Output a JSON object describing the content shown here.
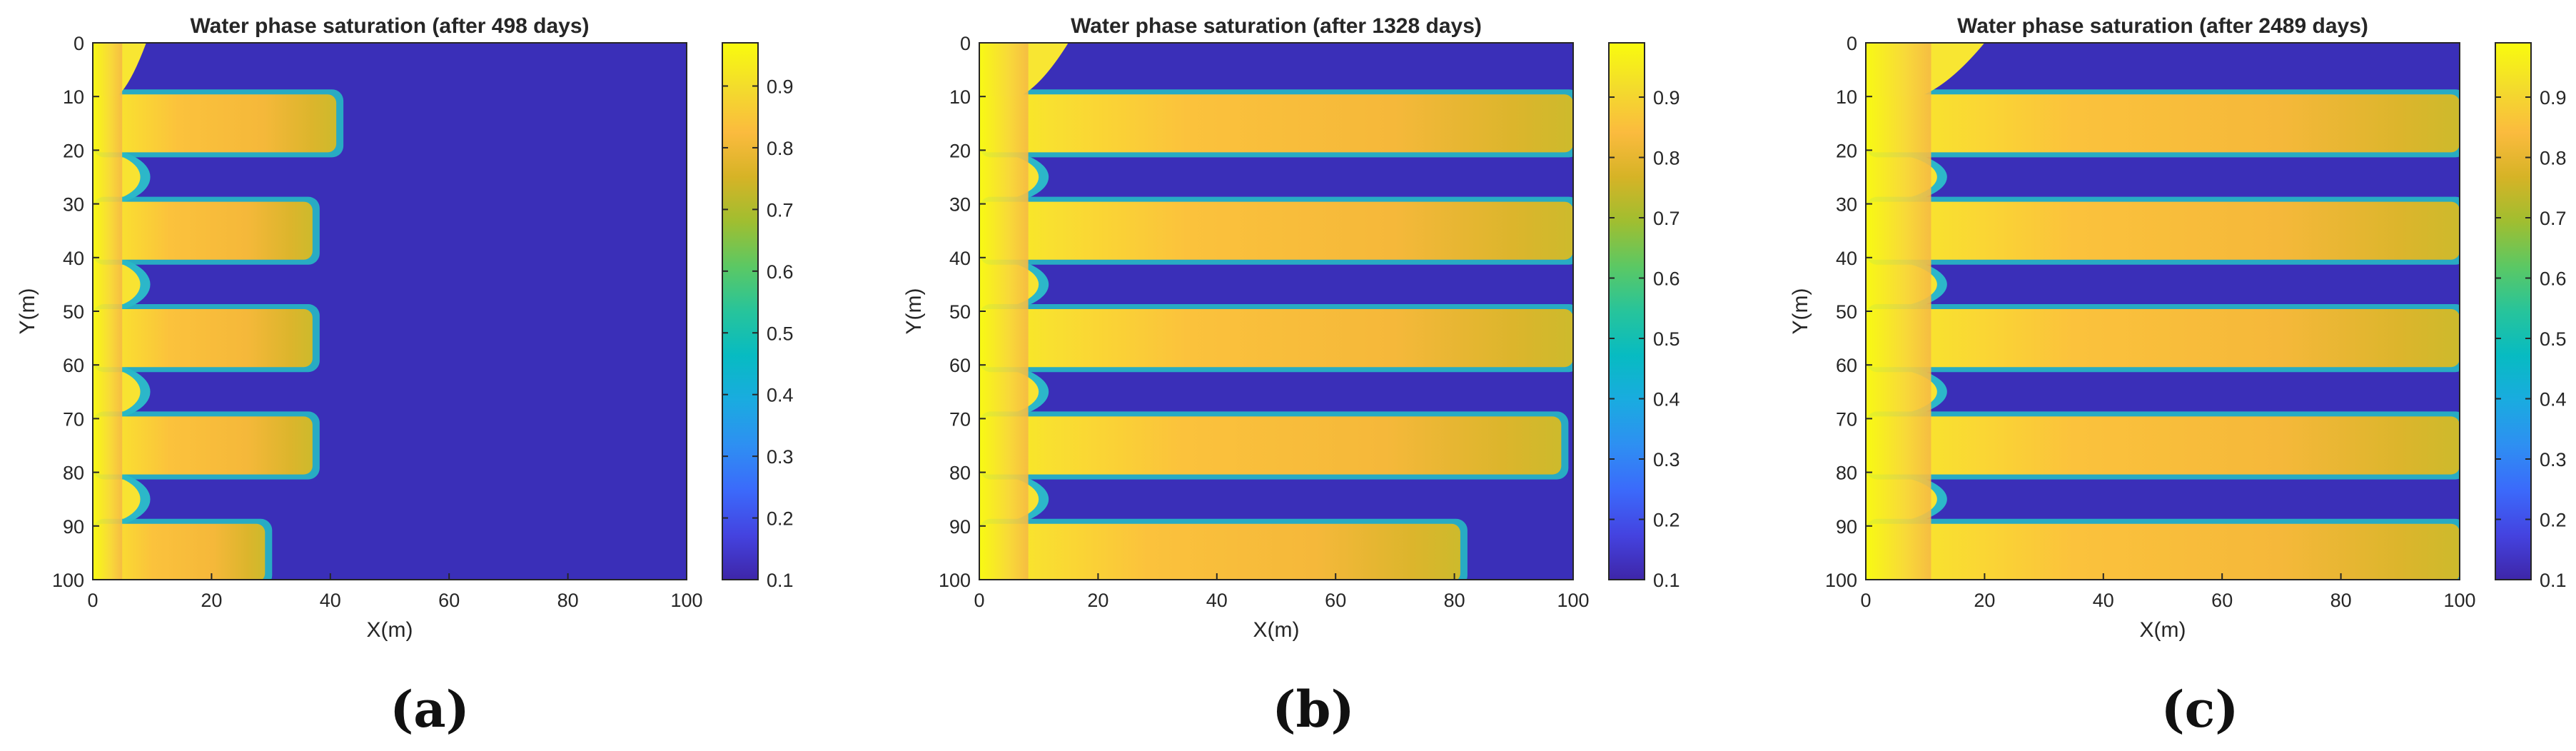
{
  "colors": {
    "background": "#3a2fb8",
    "colormap": [
      "#3e26a8",
      "#4443e0",
      "#3b6afb",
      "#2e8ff2",
      "#1aabe0",
      "#07bbc2",
      "#27c49b",
      "#5bc864",
      "#a0be30",
      "#d6b326",
      "#fbbb3e",
      "#f3dc2c",
      "#f9fb0e"
    ]
  },
  "chart_data": [
    {
      "type": "heatmap",
      "title": "Water phase saturation (after 498 days)",
      "xlabel": "X(m)",
      "ylabel": "Y(m)",
      "xlim": [
        0,
        100
      ],
      "ylim": [
        0,
        100
      ],
      "y_reversed": true,
      "xticks": [
        "0",
        "20",
        "40",
        "60",
        "80",
        "100"
      ],
      "yticks": [
        "0",
        "10",
        "20",
        "30",
        "40",
        "50",
        "60",
        "70",
        "80",
        "90",
        "100"
      ],
      "colorbar": {
        "range": [
          0.1,
          0.97
        ],
        "ticks": [
          "0.1",
          "0.2",
          "0.3",
          "0.4",
          "0.5",
          "0.6",
          "0.7",
          "0.8",
          "0.9"
        ]
      },
      "background_saturation": 0.1,
      "injector_column": {
        "x_max": 9,
        "saturation": [
          0.97,
          0.85
        ]
      },
      "fractures": [
        {
          "y_range": [
            10,
            20
          ],
          "x_end": 41
        },
        {
          "y_range": [
            30,
            40
          ],
          "x_end": 37
        },
        {
          "y_range": [
            50,
            60
          ],
          "x_end": 37
        },
        {
          "y_range": [
            70,
            80
          ],
          "x_end": 37
        },
        {
          "y_range": [
            90,
            100
          ],
          "x_end": 29
        }
      ],
      "gap_bumps_x_end": 8,
      "caption": "(a)"
    },
    {
      "type": "heatmap",
      "title": "Water phase saturation (after 1328 days)",
      "xlabel": "X(m)",
      "ylabel": "Y(m)",
      "xlim": [
        0,
        100
      ],
      "ylim": [
        0,
        100
      ],
      "y_reversed": true,
      "xticks": [
        "0",
        "20",
        "40",
        "60",
        "80",
        "100"
      ],
      "yticks": [
        "0",
        "10",
        "20",
        "30",
        "40",
        "50",
        "60",
        "70",
        "80",
        "90",
        "100"
      ],
      "colorbar": {
        "range": [
          0.1,
          0.99
        ],
        "ticks": [
          "0.1",
          "0.2",
          "0.3",
          "0.4",
          "0.5",
          "0.6",
          "0.7",
          "0.8",
          "0.9"
        ]
      },
      "background_saturation": 0.1,
      "injector_column": {
        "x_max": 15,
        "saturation": [
          0.97,
          0.85
        ]
      },
      "fractures": [
        {
          "y_range": [
            10,
            20
          ],
          "x_end": 100
        },
        {
          "y_range": [
            30,
            40
          ],
          "x_end": 100
        },
        {
          "y_range": [
            50,
            60
          ],
          "x_end": 100
        },
        {
          "y_range": [
            70,
            80
          ],
          "x_end": 98
        },
        {
          "y_range": [
            90,
            100
          ],
          "x_end": 81
        }
      ],
      "gap_bumps_x_end": 10,
      "caption": "(b)"
    },
    {
      "type": "heatmap",
      "title": "Water phase saturation (after 2489 days)",
      "xlabel": "X(m)",
      "ylabel": "Y(m)",
      "xlim": [
        0,
        100
      ],
      "ylim": [
        0,
        100
      ],
      "y_reversed": true,
      "xticks": [
        "0",
        "20",
        "40",
        "60",
        "80",
        "100"
      ],
      "yticks": [
        "0",
        "10",
        "20",
        "30",
        "40",
        "50",
        "60",
        "70",
        "80",
        "90",
        "100"
      ],
      "colorbar": {
        "range": [
          0.1,
          0.99
        ],
        "ticks": [
          "0.1",
          "0.2",
          "0.3",
          "0.4",
          "0.5",
          "0.6",
          "0.7",
          "0.8",
          "0.9"
        ]
      },
      "background_saturation": 0.1,
      "injector_column": {
        "x_max": 20,
        "saturation": [
          0.97,
          0.85
        ]
      },
      "fractures": [
        {
          "y_range": [
            10,
            20
          ],
          "x_end": 100
        },
        {
          "y_range": [
            30,
            40
          ],
          "x_end": 100
        },
        {
          "y_range": [
            50,
            60
          ],
          "x_end": 100
        },
        {
          "y_range": [
            70,
            80
          ],
          "x_end": 100
        },
        {
          "y_range": [
            90,
            100
          ],
          "x_end": 100
        }
      ],
      "gap_bumps_x_end": 12,
      "caption": "(c)"
    }
  ]
}
